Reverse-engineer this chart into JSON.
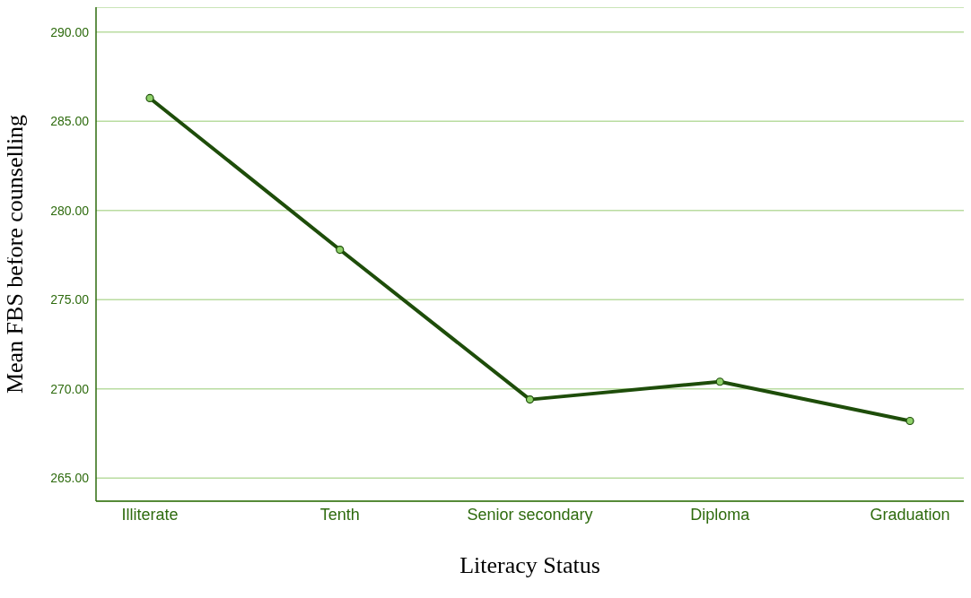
{
  "chart_data": {
    "type": "line",
    "xlabel": "Literacy Status",
    "ylabel": "Mean FBS before counselling",
    "categories": [
      "Illiterate",
      "Tenth",
      "Senior secondary",
      "Diploma",
      "Graduation"
    ],
    "series": [
      {
        "color": "#1e4d0a",
        "values": [
          286.3,
          277.8,
          269.4,
          270.4,
          268.2
        ]
      }
    ],
    "ylim": [
      263.7,
      291.4
    ],
    "yticks": [
      {
        "value": 265,
        "label": "265.00"
      },
      {
        "value": 270,
        "label": "270.00"
      },
      {
        "value": 275,
        "label": "275.00"
      },
      {
        "value": 280,
        "label": "280.00"
      },
      {
        "value": 285,
        "label": "285.00"
      },
      {
        "value": 290,
        "label": "290.00"
      }
    ],
    "grid": "y",
    "marker": "circle",
    "line_style": "solid",
    "legend": false
  }
}
